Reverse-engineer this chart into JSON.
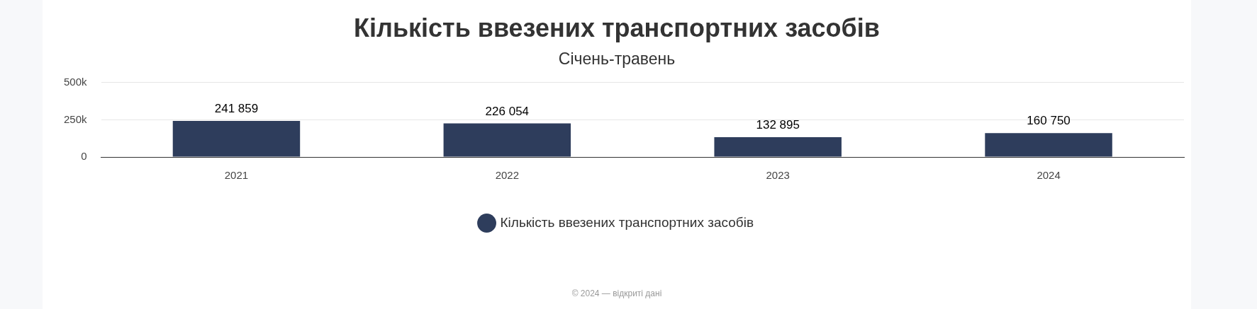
{
  "chart_data": {
    "type": "bar",
    "title": "Кількість ввезених транспортних засобів",
    "subtitle": "Січень-травень",
    "categories": [
      "2021",
      "2022",
      "2023",
      "2024"
    ],
    "series": [
      {
        "name": "Кількість ввезених транспортних засобів",
        "color": "#2e3d5c",
        "values": [
          241859,
          226054,
          132895,
          160750
        ],
        "value_labels": [
          "241 859",
          "226 054",
          "132 895",
          "160 750"
        ]
      }
    ],
    "ylim": [
      0,
      500000
    ],
    "yticks": [
      0,
      {
        "value": 250000,
        "label": "250k"
      },
      {
        "value": 500000,
        "label": "500k"
      }
    ],
    "grid": "y",
    "legend": "bottom",
    "annotations": [
      "© 2024 — відкриті дані"
    ]
  }
}
